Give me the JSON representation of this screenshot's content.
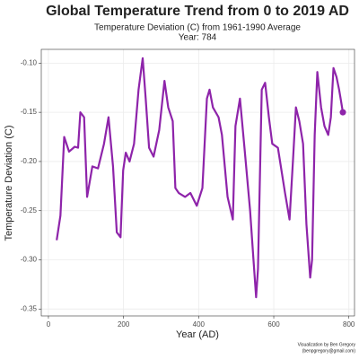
{
  "chart_data": {
    "type": "line",
    "title": "Global Temperature Trend from 0 to 2019 AD",
    "subtitle": "Temperature Deviation (C) from 1961-1990 Average",
    "subtitle2": "Year:  784",
    "x_label": "Year (AD)",
    "y_label": "Temperature Deviation (C)",
    "caption": [
      "Visualization by Ben Gregory",
      "(benpgregory@gmail.com)"
    ],
    "x": [
      22,
      32,
      42,
      55,
      70,
      79,
      85,
      95,
      103,
      117,
      132,
      148,
      160,
      172,
      182,
      192,
      199,
      206,
      216,
      228,
      240,
      251,
      259,
      268,
      280,
      295,
      309,
      319,
      331,
      338,
      347,
      364,
      378,
      395,
      410,
      422,
      429,
      438,
      453,
      462,
      477,
      491,
      498,
      510,
      522,
      537,
      546,
      553,
      558,
      568,
      577,
      587,
      596,
      611,
      630,
      642,
      651,
      659,
      668,
      678,
      687,
      697,
      702,
      709,
      716,
      726,
      735,
      745,
      752,
      759,
      767,
      774,
      778,
      784
    ],
    "series": [
      {
        "name": "Temperature Deviation",
        "color": "#8e24aa",
        "values": [
          -0.28,
          -0.255,
          -0.175,
          -0.19,
          -0.185,
          -0.186,
          -0.15,
          -0.155,
          -0.236,
          -0.205,
          -0.207,
          -0.182,
          -0.155,
          -0.205,
          -0.272,
          -0.277,
          -0.209,
          -0.191,
          -0.2,
          -0.182,
          -0.127,
          -0.095,
          -0.136,
          -0.186,
          -0.195,
          -0.168,
          -0.118,
          -0.145,
          -0.159,
          -0.227,
          -0.232,
          -0.236,
          -0.232,
          -0.245,
          -0.227,
          -0.136,
          -0.127,
          -0.145,
          -0.155,
          -0.173,
          -0.236,
          -0.259,
          -0.164,
          -0.136,
          -0.186,
          -0.25,
          -0.3,
          -0.338,
          -0.309,
          -0.127,
          -0.12,
          -0.155,
          -0.182,
          -0.186,
          -0.232,
          -0.259,
          -0.2,
          -0.145,
          -0.159,
          -0.182,
          -0.264,
          -0.318,
          -0.3,
          -0.173,
          -0.109,
          -0.145,
          -0.164,
          -0.173,
          -0.155,
          -0.105,
          -0.114,
          -0.127,
          -0.136,
          -0.15
        ]
      }
    ],
    "xlim": [
      -19,
      815
    ],
    "ylim": [
      -0.357,
      -0.086
    ],
    "xticks": [
      0,
      200,
      400,
      600,
      800
    ],
    "yticks": [
      {
        "value": -0.1,
        "label": "-0.10"
      },
      -0.15,
      {
        "value": -0.2,
        "label": "-0.20"
      },
      -0.25,
      {
        "value": -0.3,
        "label": "-0.30"
      },
      -0.35
    ],
    "grid": true
  }
}
